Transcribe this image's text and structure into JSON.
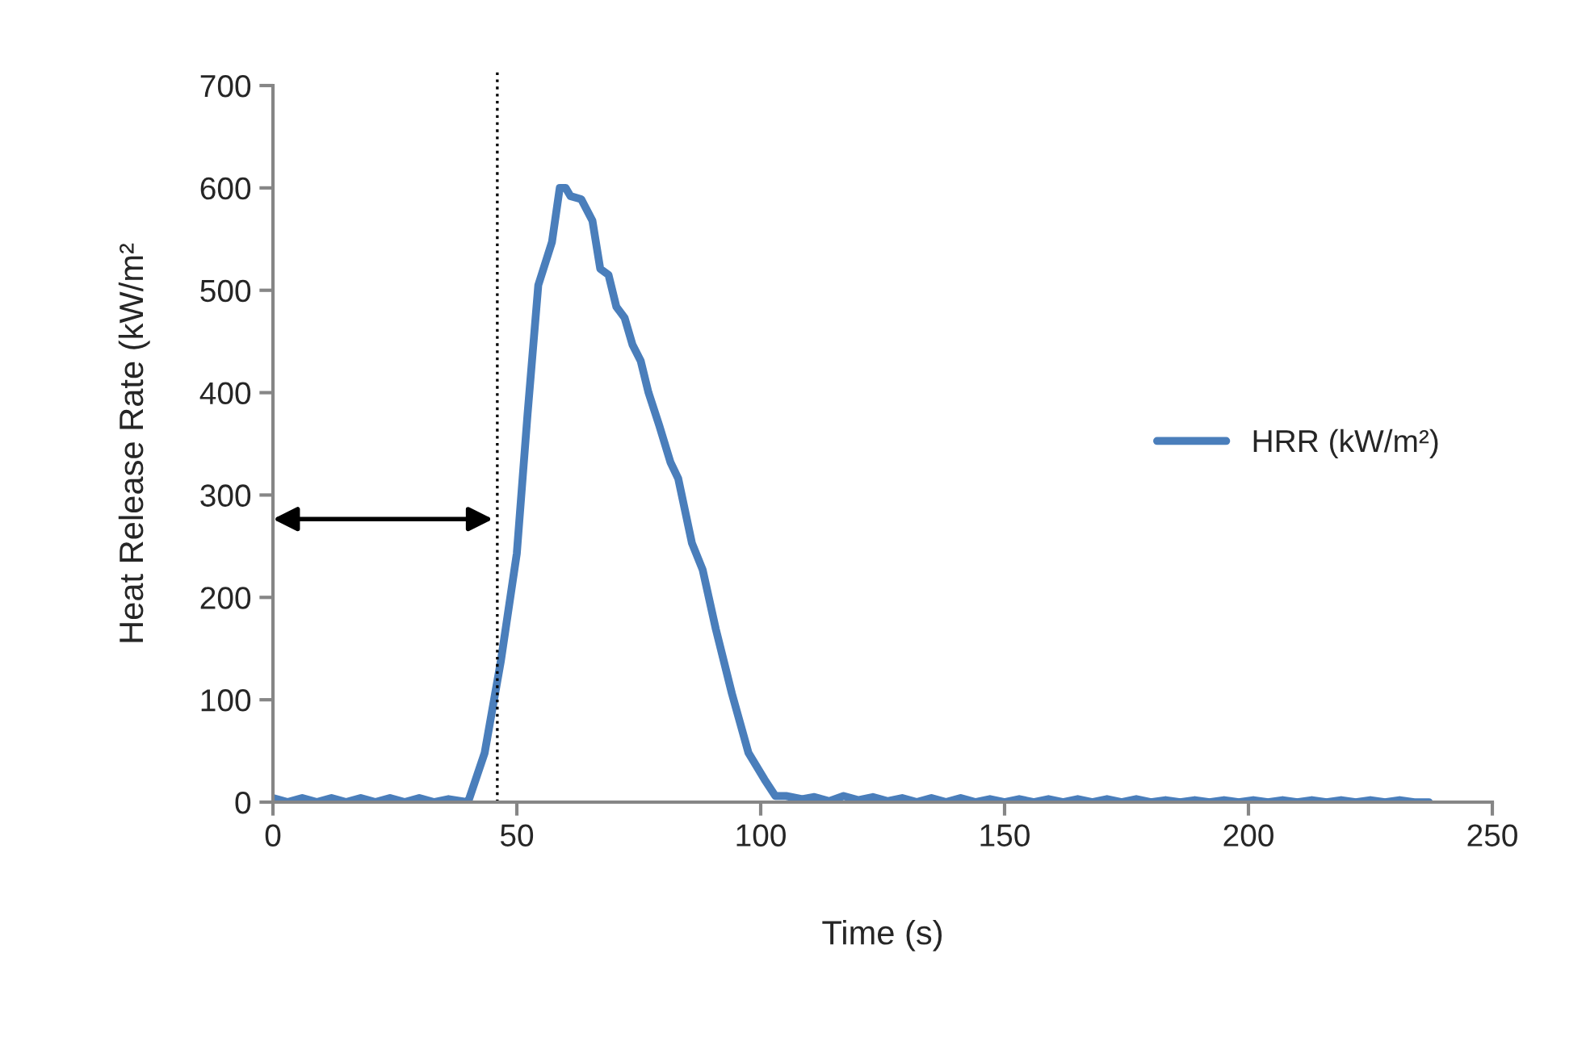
{
  "chart_data": {
    "type": "line",
    "xlabel": "Time (s)",
    "ylabel": "Heat Release Rate (kW/m²",
    "xlim": [
      0,
      250
    ],
    "ylim": [
      0,
      700
    ],
    "xticks": [
      0,
      50,
      100,
      150,
      200,
      250
    ],
    "yticks": [
      0,
      100,
      200,
      300,
      400,
      500,
      600,
      700
    ],
    "grid": false,
    "legend": "right",
    "line_style": "solid",
    "marker": "none",
    "ref_lines": [
      {
        "axis": "x",
        "value": 46,
        "color": "#000000",
        "line_style": "dotted"
      }
    ],
    "series": [
      {
        "name": "HRR (kW/m²)",
        "color": "#4a7ebb",
        "x": [
          0,
          3,
          6,
          9,
          12,
          15,
          18,
          21,
          24,
          27,
          30,
          33,
          36,
          40,
          43.4,
          46.7,
          50,
          52.2,
          54.4,
          57.2,
          58.8,
          60,
          61,
          63.2,
          65.5,
          67.1,
          68.8,
          70.4,
          72.1,
          73.7,
          75.4,
          77,
          79.2,
          81.5,
          83.1,
          85.9,
          88.1,
          90.8,
          94.1,
          97.5,
          100.8,
          103,
          105.2,
          108.5,
          111,
          114,
          117,
          120,
          123,
          126,
          129,
          132,
          135,
          138,
          141,
          144,
          147,
          150,
          153,
          156,
          159,
          162,
          165,
          168,
          171,
          174,
          177,
          180,
          183,
          186,
          189,
          192,
          195,
          198,
          201,
          204,
          207,
          210,
          213,
          216,
          219,
          222,
          225,
          228,
          231,
          234,
          237
        ],
        "values": [
          4,
          0,
          4,
          0,
          4,
          0,
          4,
          0,
          4,
          0,
          4,
          0,
          3,
          0,
          48,
          137,
          243,
          379,
          505,
          547,
          600,
          600,
          592,
          589,
          568,
          521,
          515,
          484,
          473,
          447,
          431,
          400,
          368,
          332,
          316,
          253,
          227,
          169,
          106,
          48,
          22,
          6,
          6,
          3,
          5,
          1,
          6,
          2,
          5,
          1,
          4,
          0,
          4,
          0,
          4,
          0,
          3,
          0,
          3,
          0,
          3,
          0,
          3,
          0,
          3,
          0,
          3,
          0,
          2,
          0,
          2,
          0,
          2,
          0,
          2,
          0,
          2,
          0,
          2,
          0,
          2,
          0,
          2,
          0,
          2,
          0,
          0
        ]
      }
    ]
  }
}
